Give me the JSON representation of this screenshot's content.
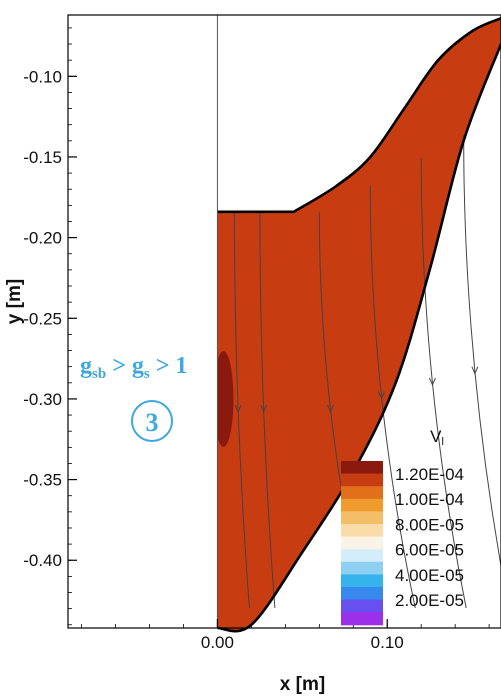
{
  "chart_data": {
    "type": "contour",
    "xlabel": "x [m]",
    "ylabel": "y [m]",
    "xlim": [
      -0.088,
      0.167
    ],
    "ylim": [
      -0.442,
      -0.062
    ],
    "x_ticks": [
      "0.00",
      "0.10"
    ],
    "y_ticks": [
      "-0.10",
      "-0.15",
      "-0.20",
      "-0.25",
      "-0.30",
      "-0.35",
      "-0.40"
    ],
    "legend": {
      "title": "V",
      "title_subscript": "l",
      "position": "bottom-right",
      "labels": [
        "1.20E-04",
        "1.00E-04",
        "8.00E-05",
        "6.00E-05",
        "4.00E-05",
        "2.00E-05"
      ]
    },
    "levels": [
      {
        "value": 0.00013,
        "color": "#8b1a0e"
      },
      {
        "value": 0.00012,
        "color": "#c83c12"
      },
      {
        "value": 0.00011,
        "color": "#e2701a"
      },
      {
        "value": 0.0001,
        "color": "#ef9b2e"
      },
      {
        "value": 9e-05,
        "color": "#f4be68"
      },
      {
        "value": 8e-05,
        "color": "#f9dca8"
      },
      {
        "value": 7e-05,
        "color": "#fbf4e6"
      },
      {
        "value": 6e-05,
        "color": "#d3eefa"
      },
      {
        "value": 5e-05,
        "color": "#8fd0f2"
      },
      {
        "value": 4e-05,
        "color": "#36b3ea"
      },
      {
        "value": 3e-05,
        "color": "#3889ee"
      },
      {
        "value": 2e-05,
        "color": "#6750ef"
      },
      {
        "value": 1e-05,
        "color": "#9b30e8"
      }
    ],
    "boundary": {
      "top_y": -0.184,
      "axis_x": 0.0,
      "bottom_y": -0.442,
      "outer_wall": [
        [
          0.045,
          -0.184
        ],
        [
          0.07,
          -0.168
        ],
        [
          0.09,
          -0.15
        ],
        [
          0.11,
          -0.12
        ],
        [
          0.13,
          -0.09
        ],
        [
          0.15,
          -0.072
        ],
        [
          0.167,
          -0.064
        ]
      ],
      "inner_wall": [
        [
          0.0,
          -0.442
        ],
        [
          0.02,
          -0.44
        ],
        [
          0.05,
          -0.395
        ],
        [
          0.08,
          -0.345
        ],
        [
          0.105,
          -0.29
        ],
        [
          0.125,
          -0.22
        ],
        [
          0.145,
          -0.14
        ],
        [
          0.167,
          -0.08
        ]
      ]
    },
    "streamlines_x_start": [
      0.01,
      0.025,
      0.06,
      0.09,
      0.12,
      0.145
    ],
    "annotations": [
      {
        "text": "g_sb > g_s > 1",
        "color": "#3fa9dc"
      },
      {
        "text": "3",
        "style": "circled",
        "color": "#3fa9dc"
      }
    ]
  }
}
